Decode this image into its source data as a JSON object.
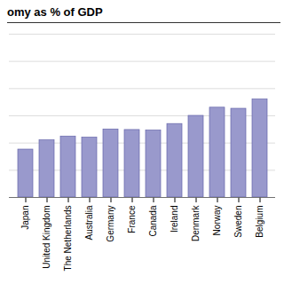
{
  "chart_data": {
    "type": "bar",
    "title": "omy as % of GDP",
    "categories": [
      "Japan",
      "United Kingdom",
      "The Netherlands",
      "Australia",
      "Germany",
      "France",
      "Canada",
      "Ireland",
      "Denmark",
      "Norway",
      "Sweden",
      "Belgium"
    ],
    "values": [
      8.8,
      10.5,
      11.2,
      11.0,
      12.5,
      12.4,
      12.3,
      13.5,
      15.0,
      16.5,
      16.3,
      18.0
    ],
    "color": "#9999cc",
    "ylim": [
      0,
      30
    ],
    "yticks": [
      0,
      5,
      10,
      15,
      20,
      25,
      30
    ],
    "grid": true,
    "tick_labels": "x"
  }
}
